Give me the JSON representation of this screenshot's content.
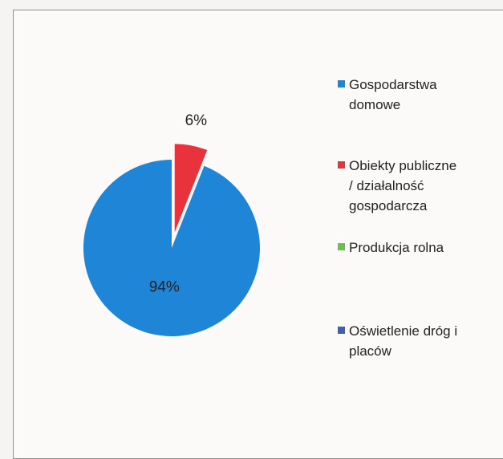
{
  "chart_data": {
    "type": "pie",
    "slices": [
      {
        "label": "Gospodarstwa domowe",
        "value": 94,
        "display": "94%",
        "color": "#1f85d6"
      },
      {
        "label": "Obiekty publiczne / działalność gospodarcza",
        "value": 6,
        "display": "6%",
        "color": "#e8323c",
        "exploded": true
      },
      {
        "label": "Produkcja rolna",
        "value": 0,
        "display": "",
        "color": "#6cc14a"
      },
      {
        "label": "Oświetlenie dróg i placów",
        "value": 0,
        "display": "",
        "color": "#3d61b8"
      }
    ],
    "legend_position": "right"
  },
  "legend": [
    {
      "text": "Gospodarstwa\ndomowe",
      "color": "#1f85d6"
    },
    {
      "text": "Obiekty publiczne\n/ działalność\ngospodarcza",
      "color": "#e8323c"
    },
    {
      "text": "Produkcja  rolna",
      "color": "#6cc14a"
    },
    {
      "text": "Oświetlenie dróg i\nplaców",
      "color": "#3d61b8"
    }
  ]
}
